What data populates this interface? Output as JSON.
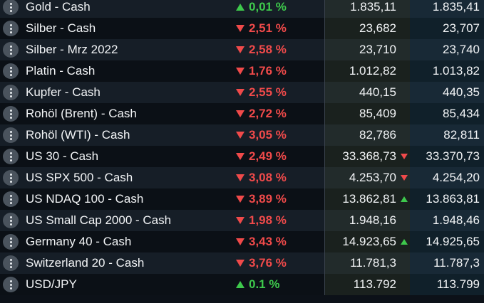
{
  "rows": [
    {
      "name": "Gold - Cash",
      "direction": "up",
      "change": "0,01 %",
      "bid": "1.835,11",
      "bid_tick": "",
      "ask": "1.835,41"
    },
    {
      "name": "Silber - Cash",
      "direction": "down",
      "change": "2,51 %",
      "bid": "23,682",
      "bid_tick": "",
      "ask": "23,707"
    },
    {
      "name": "Silber - Mrz 2022",
      "direction": "down",
      "change": "2,58 %",
      "bid": "23,710",
      "bid_tick": "",
      "ask": "23,740"
    },
    {
      "name": "Platin - Cash",
      "direction": "down",
      "change": "1,76 %",
      "bid": "1.012,82",
      "bid_tick": "",
      "ask": "1.013,82"
    },
    {
      "name": "Kupfer - Cash",
      "direction": "down",
      "change": "2,55 %",
      "bid": "440,15",
      "bid_tick": "",
      "ask": "440,35"
    },
    {
      "name": "Rohöl (Brent) - Cash",
      "direction": "down",
      "change": "2,72 %",
      "bid": "85,409",
      "bid_tick": "",
      "ask": "85,434"
    },
    {
      "name": "Rohöl (WTI) - Cash",
      "direction": "down",
      "change": "3,05 %",
      "bid": "82,786",
      "bid_tick": "",
      "ask": "82,811"
    },
    {
      "name": "US 30 - Cash",
      "direction": "down",
      "change": "2,49 %",
      "bid": "33.368,73",
      "bid_tick": "down",
      "ask": "33.370,73"
    },
    {
      "name": "US SPX 500 - Cash",
      "direction": "down",
      "change": "3,08 %",
      "bid": "4.253,70",
      "bid_tick": "down",
      "ask": "4.254,20"
    },
    {
      "name": "US NDAQ 100 - Cash",
      "direction": "down",
      "change": "3,89 %",
      "bid": "13.862,81",
      "bid_tick": "up",
      "ask": "13.863,81"
    },
    {
      "name": "US Small Cap 2000 - Cash",
      "direction": "down",
      "change": "1,98 %",
      "bid": "1.948,16",
      "bid_tick": "",
      "ask": "1.948,46"
    },
    {
      "name": "Germany 40 - Cash",
      "direction": "down",
      "change": "3,43 %",
      "bid": "14.923,65",
      "bid_tick": "up",
      "ask": "14.925,65"
    },
    {
      "name": "Switzerland 20 - Cash",
      "direction": "down",
      "change": "3,76 %",
      "bid": "11.781,3",
      "bid_tick": "",
      "ask": "11.787,3"
    },
    {
      "name": "USD/JPY",
      "direction": "up",
      "change": "0.1 %",
      "bid": "113.792",
      "bid_tick": "",
      "ask": "113.799"
    }
  ],
  "colors": {
    "up": "#3ec94c",
    "down": "#f04a4a",
    "row_odd": "#161e27",
    "row_even": "#0b1016"
  },
  "icons": {
    "menu": "vertical-ellipsis-icon",
    "up": "triangle-up-icon",
    "down": "triangle-down-icon"
  }
}
